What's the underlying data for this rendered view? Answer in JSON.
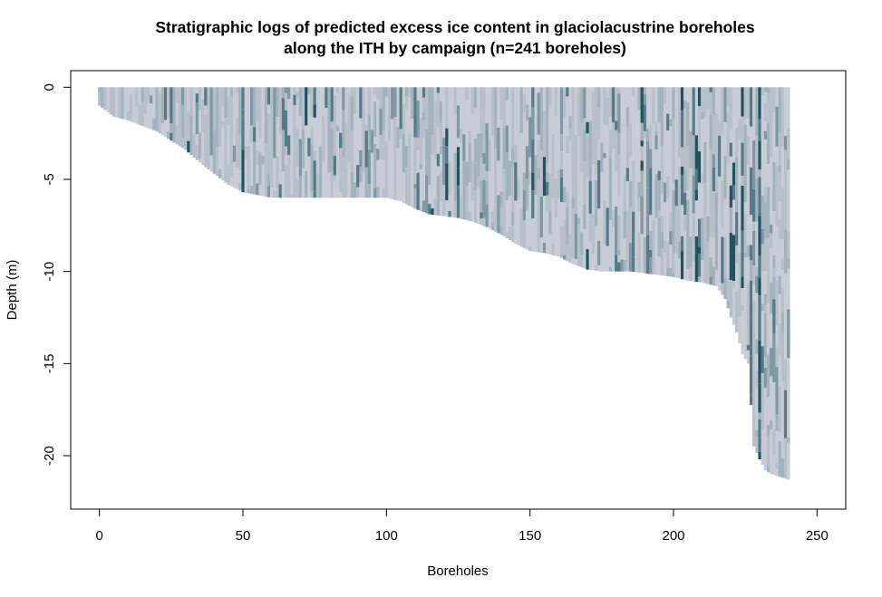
{
  "chart_data": {
    "type": "heatmap",
    "title": "Stratigraphic logs of predicted excess ice content in glaciolacustrine boreholes",
    "subtitle": "along the ITH by campaign (n=241 boreholes)",
    "xlabel": "Boreholes",
    "ylabel": "Depth (m)",
    "xlim": [
      -10,
      260
    ],
    "ylim": [
      -22.9,
      0.9
    ],
    "x_ticks": [
      0,
      50,
      100,
      150,
      200,
      250
    ],
    "y_ticks": [
      0,
      -5,
      -10,
      -15,
      -20
    ],
    "x_tick_labels": [
      "0",
      "50",
      "100",
      "150",
      "200",
      "250"
    ],
    "y_tick_labels": [
      "0",
      "-5",
      "-10",
      "-15",
      "-20"
    ],
    "grid": false,
    "legend": "none",
    "n_boreholes": 241,
    "color_scale": [
      "#c8ccd6",
      "#b7c0c9",
      "#a3b3bd",
      "#7f98a4",
      "#557a88",
      "#21535f"
    ],
    "color_scale_note": "light = low excess ice, dark = high excess ice",
    "borehole_bottom_depth_profile": {
      "borehole": [
        0,
        5,
        10,
        15,
        20,
        25,
        30,
        35,
        40,
        45,
        50,
        60,
        80,
        100,
        105,
        110,
        115,
        120,
        125,
        130,
        135,
        140,
        145,
        150,
        155,
        160,
        165,
        170,
        175,
        180,
        185,
        190,
        195,
        200,
        205,
        210,
        215,
        218,
        220,
        222,
        224,
        226,
        228,
        230,
        232,
        234,
        236,
        238,
        240
      ],
      "bottom_depth": [
        -1.0,
        -1.6,
        -1.8,
        -2.1,
        -2.4,
        -2.9,
        -3.4,
        -4.1,
        -4.7,
        -5.3,
        -5.7,
        -6.0,
        -6.0,
        -6.0,
        -6.2,
        -6.6,
        -6.9,
        -7.0,
        -7.1,
        -7.3,
        -7.6,
        -8.0,
        -8.5,
        -8.9,
        -9.0,
        -9.2,
        -9.6,
        -9.9,
        -10.0,
        -10.0,
        -10.0,
        -10.1,
        -10.2,
        -10.3,
        -10.5,
        -10.6,
        -10.8,
        -11.5,
        -12.5,
        -13.3,
        -14.5,
        -15.0,
        -19.5,
        -20.2,
        -20.8,
        -21.0,
        -21.1,
        -21.2,
        -21.3
      ]
    },
    "high_ice_boreholes": [
      31,
      37,
      50,
      63,
      66,
      72,
      75,
      116,
      118,
      121,
      125,
      151,
      155,
      170,
      177,
      182,
      189,
      203,
      208,
      209,
      220,
      221,
      224,
      227,
      230
    ]
  }
}
